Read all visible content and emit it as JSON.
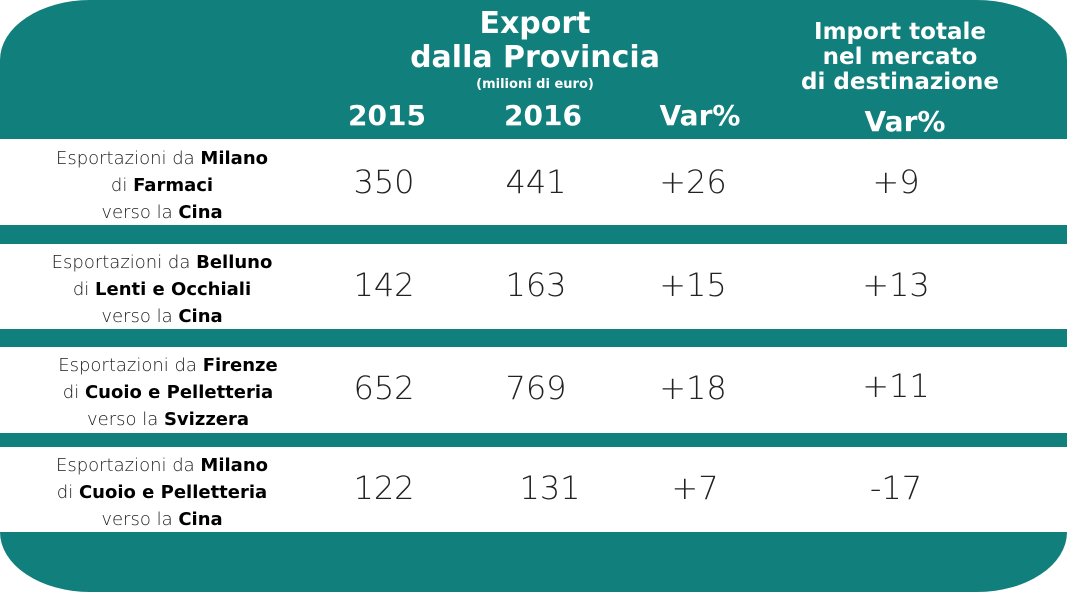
{
  "header": {
    "export_title_line1": "Export",
    "export_title_line2": "dalla Provincia",
    "export_unit": "(milioni di euro)",
    "import_title_line1": "Import totale",
    "import_title_line2": "nel mercato",
    "import_title_line3": "di destinazione",
    "col_2015": "2015",
    "col_2016": "2016",
    "col_var": "Var%",
    "col_import_var": "Var%"
  },
  "rows": [
    {
      "label_prefix": "Esportazioni da ",
      "city": "Milano",
      "di": "di ",
      "product": "Farmaci",
      "verso": "verso la ",
      "country": "Cina",
      "v2015": "350",
      "v2016": "441",
      "var": "+26",
      "import_var": "+9"
    },
    {
      "label_prefix": "Esportazioni da ",
      "city": "Belluno",
      "di": "di ",
      "product": "Lenti e Occhiali",
      "verso": "verso la ",
      "country": "Cina",
      "v2015": "142",
      "v2016": "163",
      "var": "+15",
      "import_var": "+13"
    },
    {
      "label_prefix": "Esportazioni da ",
      "city": "Firenze",
      "di": "di ",
      "product": "Cuoio e Pelletteria",
      "verso": "verso la ",
      "country": "Svizzera",
      "v2015": "652",
      "v2016": "769",
      "var": "+18",
      "import_var": "+11"
    },
    {
      "label_prefix": "Esportazioni da ",
      "city": "Milano",
      "di": "di ",
      "product": "Cuoio e Pelletteria",
      "verso": "verso la ",
      "country": "Cina",
      "v2015": "122",
      "v2016": "131",
      "var": "+7",
      "import_var": "-17"
    }
  ],
  "colors": {
    "accent": "#117f7c",
    "row_bg": "#ffffff"
  },
  "chart_data": {
    "type": "table",
    "columns": [
      "",
      "2015",
      "2016",
      "Var%",
      "Var%"
    ],
    "rows": [
      [
        "Esportazioni da Milano di Farmaci verso la Cina",
        350,
        441,
        26,
        9
      ],
      [
        "Esportazioni da Belluno di Lenti e Occhiali verso la Cina",
        142,
        163,
        15,
        13
      ],
      [
        "Esportazioni da Firenze di Cuoio e Pelletteria verso la Svizzera",
        652,
        769,
        18,
        11
      ],
      [
        "Esportazioni da Milano di Cuoio e Pelletteria verso la Cina",
        122,
        131,
        7,
        -17
      ]
    ]
  }
}
